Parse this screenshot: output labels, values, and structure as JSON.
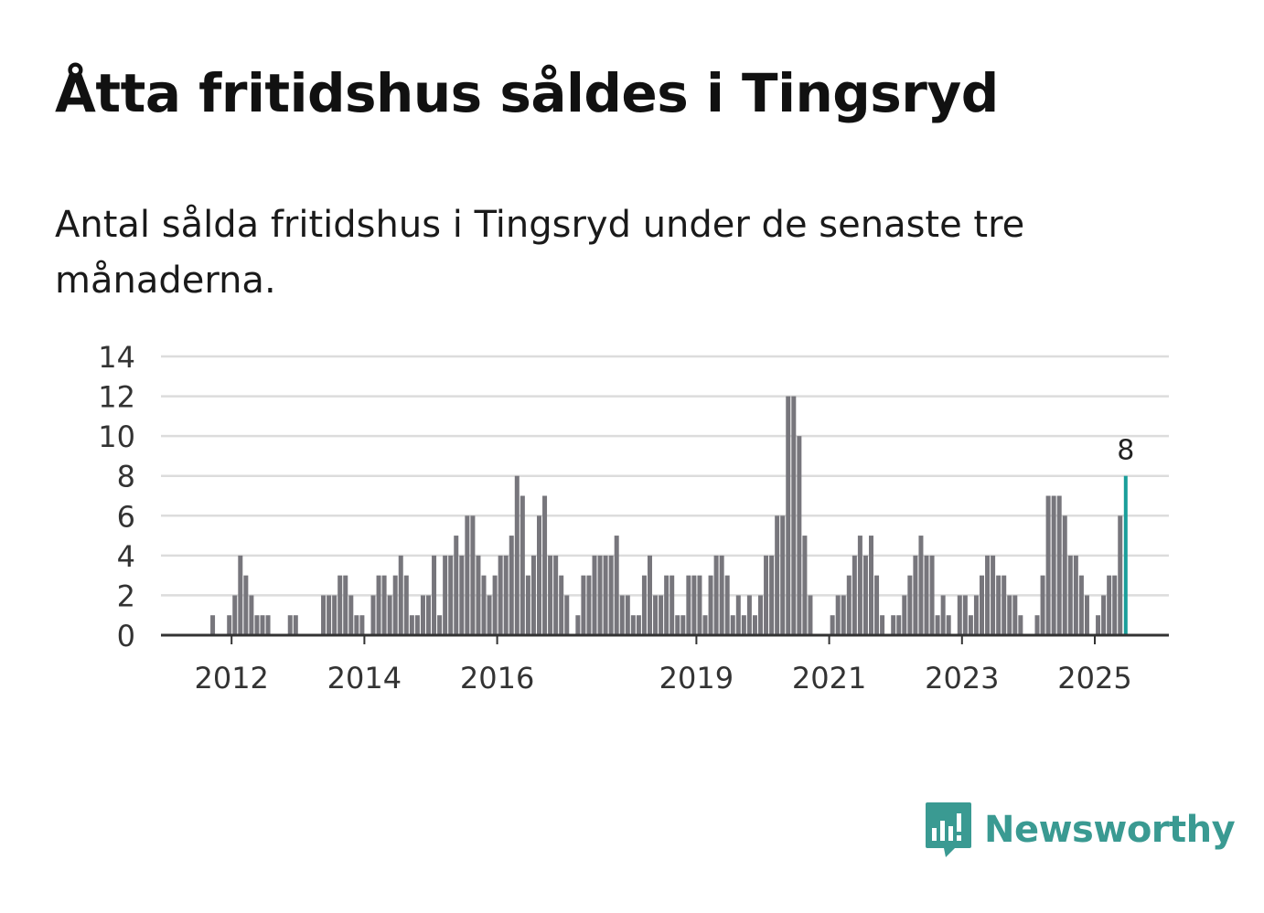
{
  "header": {
    "title": "Åtta fritidshus såldes i Tingsryd",
    "subtitle": "Antal sålda fritidshus i Tingsryd under de senaste tre månaderna."
  },
  "brand": {
    "name": "Newsworthy",
    "color": "#3a9a92",
    "icon": "newsworthy-logo-icon"
  },
  "colors": {
    "bar": "#77767c",
    "highlight": "#1a9e9a",
    "grid": "#dcdcdc",
    "axis": "#333333"
  },
  "chart_data": {
    "type": "bar",
    "title": "Åtta fritidshus såldes i Tingsryd",
    "xlabel": "",
    "ylabel": "",
    "ylim": [
      0,
      14
    ],
    "yticks": [
      0,
      2,
      4,
      6,
      8,
      10,
      12,
      14
    ],
    "grid": true,
    "start": {
      "year": 2011,
      "month": 9
    },
    "xtick_labels": [
      "2012",
      "2014",
      "2016",
      "2019",
      "2021",
      "2023",
      "2025"
    ],
    "values": [
      0,
      1,
      0,
      0,
      1,
      2,
      4,
      3,
      2,
      1,
      1,
      1,
      0,
      0,
      0,
      1,
      1,
      0,
      0,
      0,
      0,
      2,
      2,
      2,
      3,
      3,
      2,
      1,
      1,
      0,
      2,
      3,
      3,
      2,
      3,
      4,
      3,
      1,
      1,
      2,
      2,
      4,
      1,
      4,
      4,
      5,
      4,
      6,
      6,
      4,
      3,
      2,
      3,
      4,
      4,
      5,
      8,
      7,
      3,
      4,
      6,
      7,
      4,
      4,
      3,
      2,
      0,
      1,
      3,
      3,
      4,
      4,
      4,
      4,
      5,
      2,
      2,
      1,
      1,
      3,
      4,
      2,
      2,
      3,
      3,
      1,
      1,
      3,
      3,
      3,
      1,
      3,
      4,
      4,
      3,
      1,
      2,
      1,
      2,
      1,
      2,
      4,
      4,
      6,
      6,
      12,
      12,
      10,
      5,
      2,
      0,
      0,
      0,
      1,
      2,
      2,
      3,
      4,
      5,
      4,
      5,
      3,
      1,
      0,
      1,
      1,
      2,
      3,
      4,
      5,
      4,
      4,
      1,
      2,
      1,
      0,
      2,
      2,
      1,
      2,
      3,
      4,
      4,
      3,
      3,
      2,
      2,
      1,
      0,
      0,
      1,
      3,
      7,
      7,
      7,
      6,
      4,
      4,
      3,
      2,
      0,
      1,
      2,
      3,
      3,
      6,
      8
    ],
    "highlight": {
      "index": 166,
      "value": 8,
      "label": "8"
    }
  }
}
